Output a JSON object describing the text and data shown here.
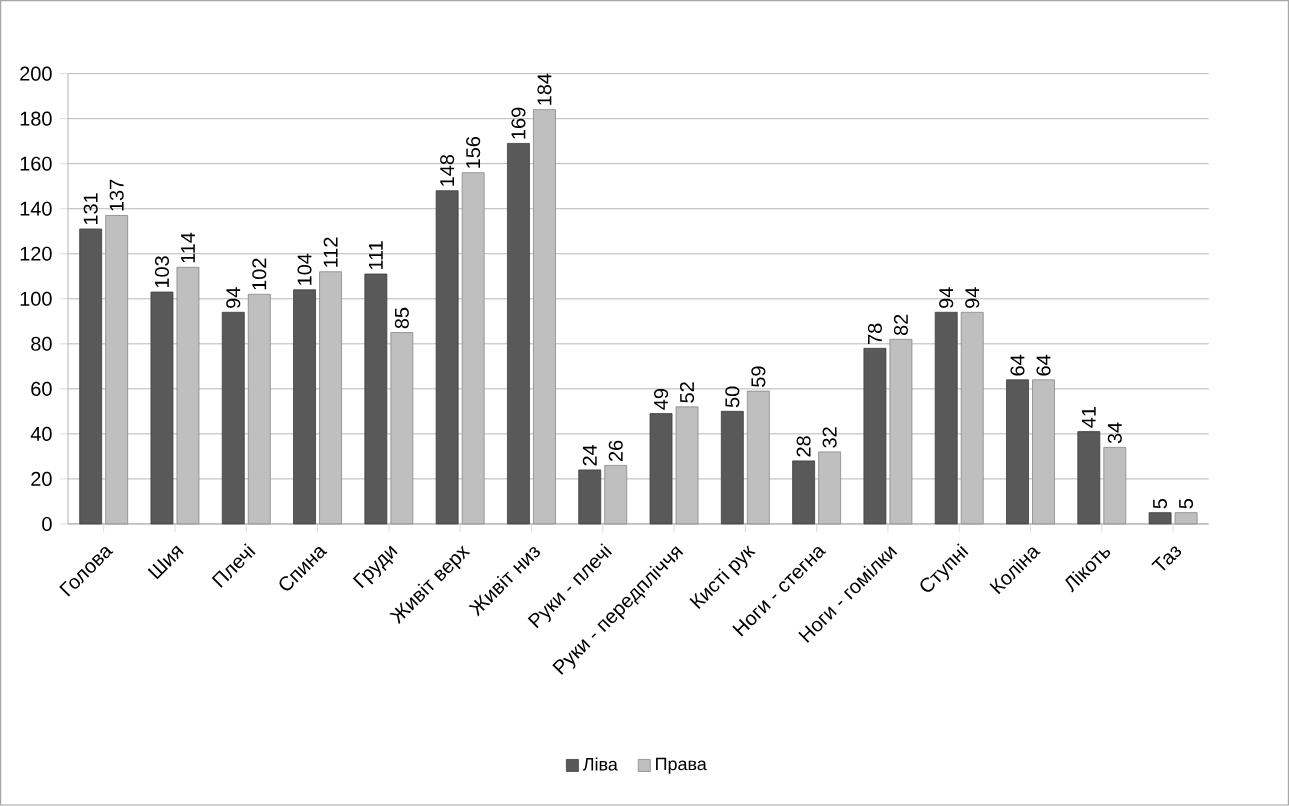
{
  "chart_data": {
    "type": "bar",
    "categories": [
      "Голова",
      "Шия",
      "Плечі",
      "Спина",
      "Груди",
      "Живіт верх",
      "Живіт низ",
      "Руки - плечі",
      "Руки - передпліччя",
      "Кисті рук",
      "Ноги - стегна",
      "Ноги - гомілки",
      "Ступні",
      "Коліна",
      "Лікоть",
      "Таз"
    ],
    "series": [
      {
        "name": "Ліва",
        "color": "#595959",
        "values": [
          131,
          103,
          94,
          104,
          111,
          148,
          169,
          24,
          49,
          50,
          28,
          78,
          94,
          64,
          41,
          5
        ]
      },
      {
        "name": "Права",
        "color": "#bfbfbf",
        "values": [
          137,
          114,
          102,
          112,
          85,
          156,
          184,
          26,
          52,
          59,
          32,
          82,
          94,
          64,
          34,
          5
        ]
      }
    ],
    "ylim": [
      0,
      200
    ],
    "yticks": [
      0,
      20,
      40,
      60,
      80,
      100,
      120,
      140,
      160,
      180,
      200
    ],
    "grid": "y",
    "legend": "bottom",
    "data_labels": true
  }
}
